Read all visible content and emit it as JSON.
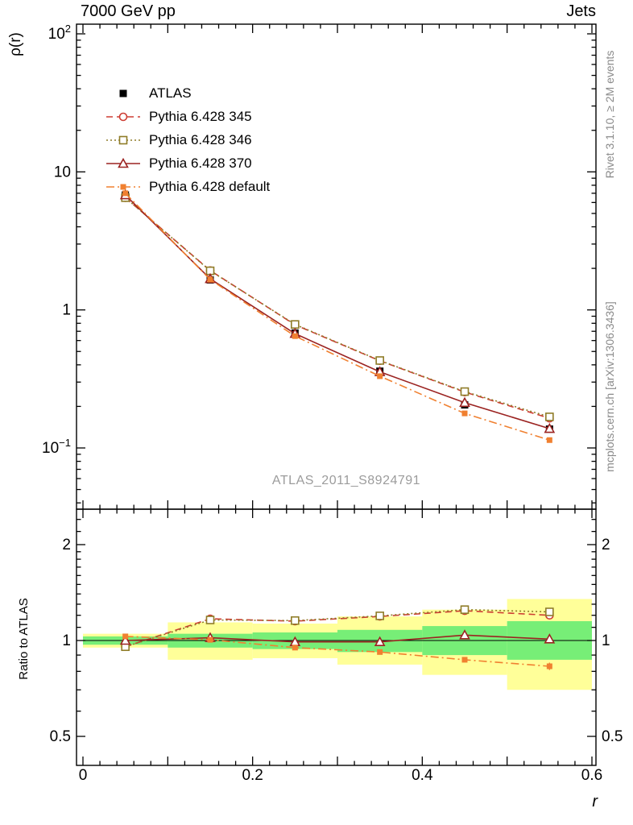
{
  "page": {
    "title_left": "7000 GeV pp",
    "title_right": "Jets",
    "rivet_label": "Rivet 3.1.10, ≥ 2M events",
    "mcplots_label": "mcplots.cern.ch [arXiv:1306.3436]",
    "watermark": "ATLAS_2011_S8924791"
  },
  "chart_data": {
    "type": "line",
    "xlabel": "r",
    "xlim": [
      0,
      0.6
    ],
    "xticks": [
      {
        "v": 0,
        "label": "0"
      },
      {
        "v": 0.2,
        "label": "0.2"
      },
      {
        "v": 0.4,
        "label": "0.4"
      },
      {
        "v": 0.6,
        "label": "0.6"
      }
    ],
    "x": [
      0.05,
      0.15,
      0.25,
      0.35,
      0.45,
      0.55
    ],
    "main_panel": {
      "ylabel": "ρ(r)",
      "yscale": "log",
      "ylim": [
        0.036,
        117
      ],
      "yticks": [
        {
          "v": 100,
          "base": "10",
          "exp": "2"
        },
        {
          "v": 10,
          "base": "10",
          "exp": ""
        },
        {
          "v": 1,
          "base": "1",
          "exp": ""
        },
        {
          "v": 0.1,
          "base": "10",
          "exp": "−1"
        }
      ],
      "series": [
        {
          "name": "ATLAS",
          "color": "#000000",
          "marker": "fsquare",
          "msize": 9,
          "line": "none",
          "values": [
            6.8,
            1.65,
            0.68,
            0.36,
            0.205,
            0.137
          ],
          "errors": [
            0.15,
            0.04,
            0.015,
            0.01,
            0.006,
            0.005
          ]
        },
        {
          "name": "Pythia 6.428 345",
          "color": "#cd3d33",
          "marker": "ocircle",
          "msize": 9,
          "line": "dashed",
          "values": [
            6.5,
            1.93,
            0.78,
            0.428,
            0.254,
            0.164
          ]
        },
        {
          "name": "Pythia 6.428 346",
          "color": "#8f7c28",
          "marker": "osquare",
          "msize": 9,
          "line": "dotted",
          "values": [
            6.5,
            1.92,
            0.785,
            0.43,
            0.256,
            0.168
          ]
        },
        {
          "name": "Pythia 6.428 370",
          "color": "#9b2321",
          "marker": "otriangle",
          "msize": 9,
          "line": "solid",
          "values": [
            6.8,
            1.68,
            0.673,
            0.356,
            0.213,
            0.138
          ]
        },
        {
          "name": "Pythia 6.428 default",
          "color": "#f08030",
          "marker": "fsquare",
          "msize": 7,
          "line": "dashdot",
          "values": [
            7.0,
            1.66,
            0.646,
            0.331,
            0.178,
            0.114
          ]
        }
      ]
    },
    "ratio_panel": {
      "ylabel": "Ratio to ATLAS",
      "yscale": "log",
      "ylim": [
        0.4,
        2.6
      ],
      "yticks": [
        {
          "v": 2,
          "label": "2"
        },
        {
          "v": 1,
          "label": "1"
        },
        {
          "v": 0.5,
          "label": "0.5"
        }
      ],
      "reference_line": 1,
      "band_colors": {
        "outer": "#ffff99",
        "inner": "#77ee77"
      },
      "bands": [
        {
          "x0": 0.0,
          "x1": 0.1,
          "outer": [
            0.95,
            1.05
          ],
          "inner": [
            0.97,
            1.03
          ]
        },
        {
          "x0": 0.1,
          "x1": 0.2,
          "outer": [
            0.87,
            1.14
          ],
          "inner": [
            0.95,
            1.05
          ]
        },
        {
          "x0": 0.2,
          "x1": 0.3,
          "outer": [
            0.88,
            1.13
          ],
          "inner": [
            0.94,
            1.06
          ]
        },
        {
          "x0": 0.3,
          "x1": 0.4,
          "outer": [
            0.84,
            1.19
          ],
          "inner": [
            0.92,
            1.08
          ]
        },
        {
          "x0": 0.4,
          "x1": 0.5,
          "outer": [
            0.78,
            1.25
          ],
          "inner": [
            0.9,
            1.11
          ]
        },
        {
          "x0": 0.5,
          "x1": 0.6,
          "outer": [
            0.7,
            1.35
          ],
          "inner": [
            0.87,
            1.15
          ]
        }
      ],
      "series": [
        {
          "name": "Pythia 6.428 345",
          "color": "#cd3d33",
          "marker": "ocircle",
          "msize": 9,
          "line": "dashed",
          "values": [
            0.956,
            1.17,
            1.15,
            1.19,
            1.24,
            1.2
          ],
          "errors": [
            0.004,
            0.006,
            0.008,
            0.01,
            0.013,
            0.018
          ]
        },
        {
          "name": "Pythia 6.428 346",
          "color": "#8f7c28",
          "marker": "osquare",
          "msize": 9,
          "line": "dotted",
          "values": [
            0.956,
            1.16,
            1.155,
            1.195,
            1.25,
            1.23
          ],
          "errors": [
            0.004,
            0.006,
            0.008,
            0.01,
            0.013,
            0.018
          ]
        },
        {
          "name": "Pythia 6.428 370",
          "color": "#9b2321",
          "marker": "otriangle",
          "msize": 9,
          "line": "solid",
          "values": [
            1.0,
            1.02,
            0.99,
            0.99,
            1.04,
            1.01
          ],
          "errors": [
            0.004,
            0.006,
            0.008,
            0.01,
            0.013,
            0.018
          ]
        },
        {
          "name": "Pythia 6.428 default",
          "color": "#f08030",
          "marker": "fsquare",
          "msize": 7,
          "line": "dashdot",
          "values": [
            1.03,
            1.005,
            0.95,
            0.92,
            0.87,
            0.83
          ],
          "errors": [
            0.005,
            0.007,
            0.01,
            0.012,
            0.016,
            0.022
          ]
        }
      ]
    }
  }
}
